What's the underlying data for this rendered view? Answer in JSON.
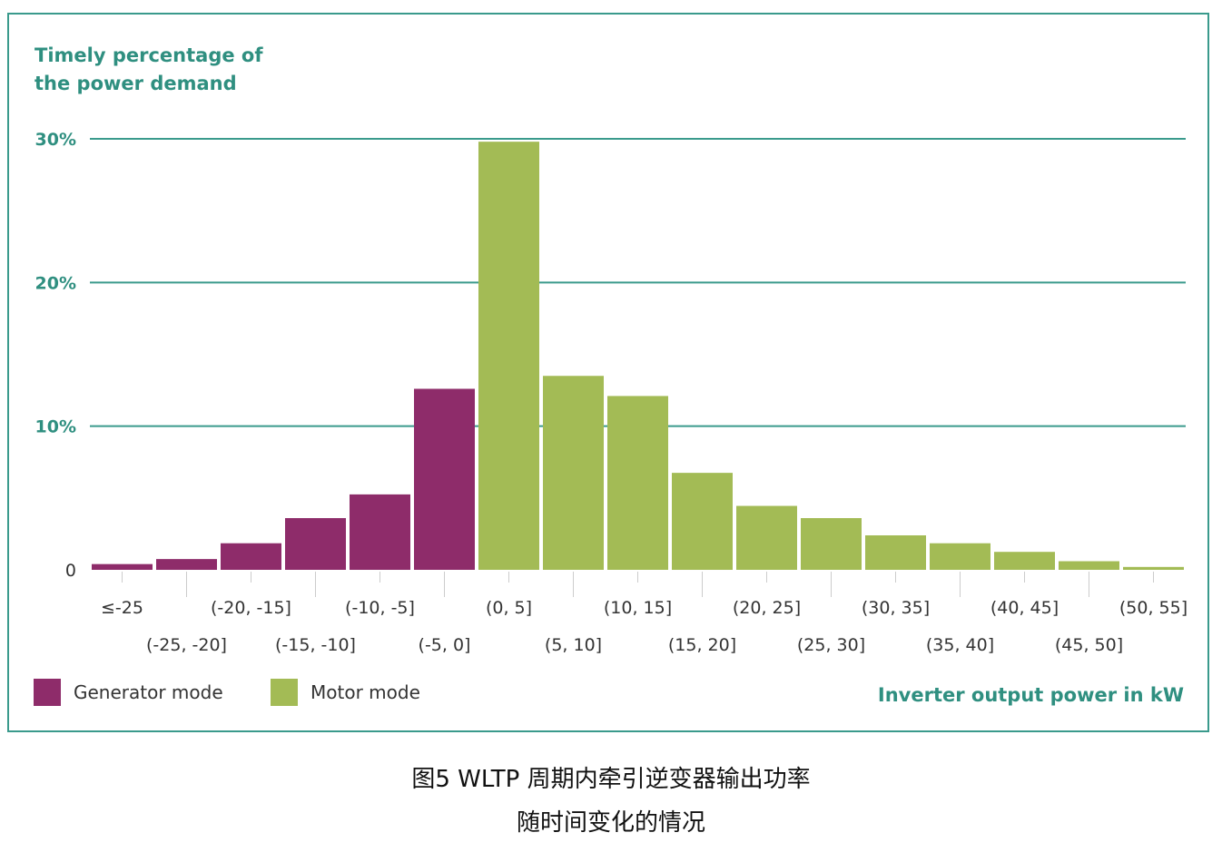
{
  "chart_data": {
    "type": "bar",
    "ylabel": "Timely percentage of the power demand",
    "ylabel_lines": [
      "Timely percentage of",
      "the power demand"
    ],
    "xlabel": "Inverter output power in kW",
    "ylim": [
      0,
      30
    ],
    "yticks": [
      {
        "value": 0,
        "label": "0"
      },
      {
        "value": 10,
        "label": "10%"
      },
      {
        "value": 20,
        "label": "20%"
      },
      {
        "value": 30,
        "label": "30%"
      }
    ],
    "grid": true,
    "categories": [
      "≤-25",
      "(-25, -20]",
      "(-20, -15]",
      "(-15, -10]",
      "(-10, -5]",
      "(-5, 0]",
      "(0, 5]",
      "(5, 10]",
      "(10, 15]",
      "(15, 20]",
      "(20, 25]",
      "(25, 30]",
      "(30, 35]",
      "(35, 40]",
      "(40, 45]",
      "(45, 50]",
      "(50, 55]"
    ],
    "series": [
      {
        "name": "Generator mode",
        "color": "#8e2c6a",
        "values": [
          0.4,
          0.75,
          1.85,
          3.6,
          5.25,
          12.6,
          null,
          null,
          null,
          null,
          null,
          null,
          null,
          null,
          null,
          null,
          null
        ]
      },
      {
        "name": "Motor mode",
        "color": "#a3bb55",
        "values": [
          null,
          null,
          null,
          null,
          null,
          null,
          29.8,
          13.5,
          12.1,
          6.75,
          4.45,
          3.6,
          2.4,
          1.85,
          1.25,
          0.6,
          0.2
        ]
      }
    ],
    "legend_position": "bottom-left"
  },
  "caption": {
    "line1": "图5 WLTP 周期内牵引逆变器输出功率",
    "line2": "随时间变化的情况"
  },
  "colors": {
    "accent": "#2f8f80",
    "frame": "#3a9a8c",
    "gridline": "#3a9a8c",
    "generator": "#8e2c6a",
    "motor": "#a3bb55"
  }
}
